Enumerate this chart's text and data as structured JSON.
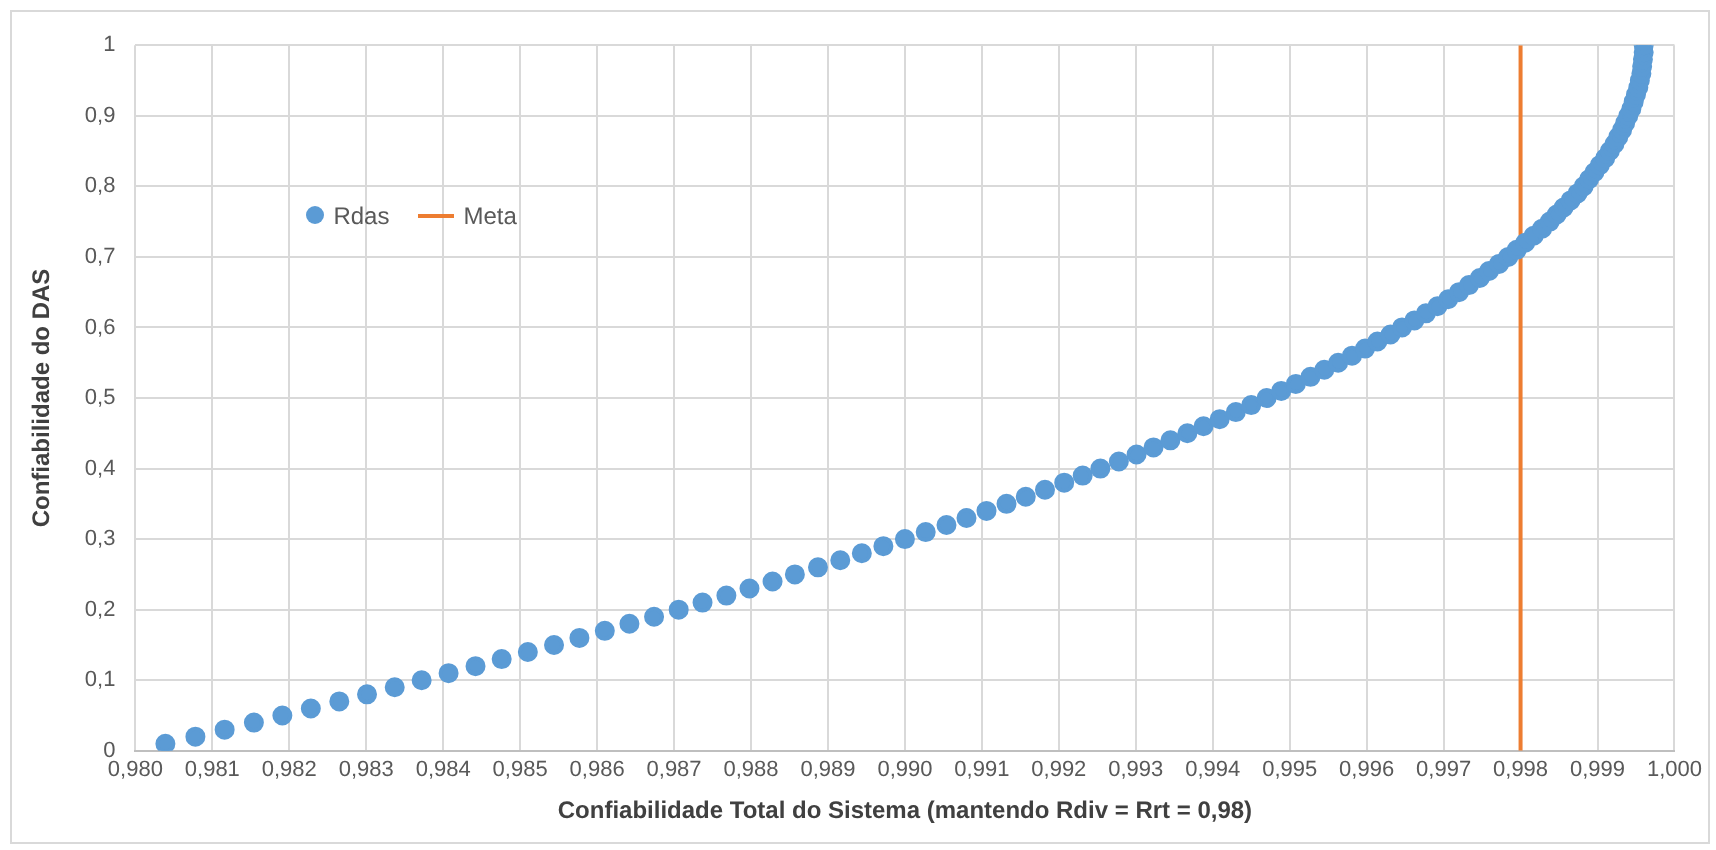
{
  "chart_data": {
    "type": "scatter",
    "xlabel": "Confiabilidade Total do Sistema (mantendo Rdiv = Rrt = 0,98)",
    "ylabel": "Confiabilidade do DAS",
    "x": [
      0.98039,
      0.98078,
      0.98116,
      0.98154,
      0.98191,
      0.98228,
      0.98265,
      0.98301,
      0.98337,
      0.98372,
      0.98407,
      0.98442,
      0.98476,
      0.9851,
      0.98544,
      0.98577,
      0.9861,
      0.98642,
      0.98674,
      0.98706,
      0.98737,
      0.98768,
      0.98798,
      0.98828,
      0.98857,
      0.98887,
      0.98916,
      0.98944,
      0.98972,
      0.99,
      0.99027,
      0.99054,
      0.9908,
      0.99106,
      0.99132,
      0.99157,
      0.99182,
      0.99207,
      0.99231,
      0.99254,
      0.99278,
      0.99301,
      0.99323,
      0.99345,
      0.99367,
      0.99388,
      0.99409,
      0.9943,
      0.9945,
      0.9947,
      0.99489,
      0.99508,
      0.99527,
      0.99545,
      0.99563,
      0.99581,
      0.99598,
      0.99614,
      0.99631,
      0.99646,
      0.99662,
      0.99677,
      0.99692,
      0.99706,
      0.9972,
      0.99733,
      0.99747,
      0.99759,
      0.99772,
      0.99784,
      0.99795,
      0.99806,
      0.99817,
      0.99828,
      0.99838,
      0.99847,
      0.99856,
      0.99865,
      0.99874,
      0.99882,
      0.99889,
      0.99896,
      0.99903,
      0.9991,
      0.99916,
      0.99922,
      0.99927,
      0.99932,
      0.99936,
      0.9994,
      0.99944,
      0.99947,
      0.9995,
      0.99953,
      0.99955,
      0.99957,
      0.99958,
      0.99959,
      0.9996,
      0.9996
    ],
    "series": [
      {
        "name": "Rdas",
        "color": "#5b9bd5",
        "values": [
          0.01,
          0.02,
          0.03,
          0.04,
          0.05,
          0.06,
          0.07,
          0.08,
          0.09,
          0.1,
          0.11,
          0.12,
          0.13,
          0.14,
          0.15,
          0.16,
          0.17,
          0.18,
          0.19,
          0.2,
          0.21,
          0.22,
          0.23,
          0.24,
          0.25,
          0.26,
          0.27,
          0.28,
          0.29,
          0.3,
          0.31,
          0.32,
          0.33,
          0.34,
          0.35,
          0.36,
          0.37,
          0.38,
          0.39,
          0.4,
          0.41,
          0.42,
          0.43,
          0.44,
          0.45,
          0.46,
          0.47,
          0.48,
          0.49,
          0.5,
          0.51,
          0.52,
          0.53,
          0.54,
          0.55,
          0.56,
          0.57,
          0.58,
          0.59,
          0.6,
          0.61,
          0.62,
          0.63,
          0.64,
          0.65,
          0.66,
          0.67,
          0.68,
          0.69,
          0.7,
          0.71,
          0.72,
          0.73,
          0.74,
          0.75,
          0.76,
          0.77,
          0.78,
          0.79,
          0.8,
          0.81,
          0.82,
          0.83,
          0.84,
          0.85,
          0.86,
          0.87,
          0.88,
          0.89,
          0.9,
          0.91,
          0.92,
          0.93,
          0.94,
          0.95,
          0.96,
          0.97,
          0.98,
          0.99,
          1.0
        ]
      },
      {
        "name": "Meta",
        "type": "line",
        "color": "#ed7d31",
        "marker": "none",
        "x": [
          0.998,
          0.998
        ],
        "values": [
          0,
          1
        ]
      }
    ],
    "xlim": [
      0.98,
      1.0
    ],
    "xticks": [
      {
        "value": 0.98,
        "label": "0,980"
      },
      {
        "value": 0.981,
        "label": "0,981"
      },
      {
        "value": 0.982,
        "label": "0,982"
      },
      {
        "value": 0.983,
        "label": "0,983"
      },
      {
        "value": 0.984,
        "label": "0,984"
      },
      {
        "value": 0.985,
        "label": "0,985"
      },
      {
        "value": 0.986,
        "label": "0,986"
      },
      {
        "value": 0.987,
        "label": "0,987"
      },
      {
        "value": 0.988,
        "label": "0,988"
      },
      {
        "value": 0.989,
        "label": "0,989"
      },
      {
        "value": 0.99,
        "label": "0,990"
      },
      {
        "value": 0.991,
        "label": "0,991"
      },
      {
        "value": 0.992,
        "label": "0,992"
      },
      {
        "value": 0.993,
        "label": "0,993"
      },
      {
        "value": 0.994,
        "label": "0,994"
      },
      {
        "value": 0.995,
        "label": "0,995"
      },
      {
        "value": 0.996,
        "label": "0,996"
      },
      {
        "value": 0.997,
        "label": "0,997"
      },
      {
        "value": 0.998,
        "label": "0,998"
      },
      {
        "value": 0.999,
        "label": "0,999"
      },
      {
        "value": 1.0,
        "label": "1,000"
      }
    ],
    "ylim": [
      0,
      1
    ],
    "yticks": [
      0,
      {
        "value": 0.1,
        "label": "0,1"
      },
      {
        "value": 0.2,
        "label": "0,2"
      },
      {
        "value": 0.3,
        "label": "0,3"
      },
      {
        "value": 0.4,
        "label": "0,4"
      },
      {
        "value": 0.5,
        "label": "0,5"
      },
      {
        "value": 0.6,
        "label": "0,6"
      },
      {
        "value": 0.7,
        "label": "0,7"
      },
      {
        "value": 0.8,
        "label": "0,8"
      },
      {
        "value": 0.9,
        "label": "0,9"
      },
      1
    ],
    "grid": true,
    "legend": "top left",
    "marker": "circle"
  }
}
